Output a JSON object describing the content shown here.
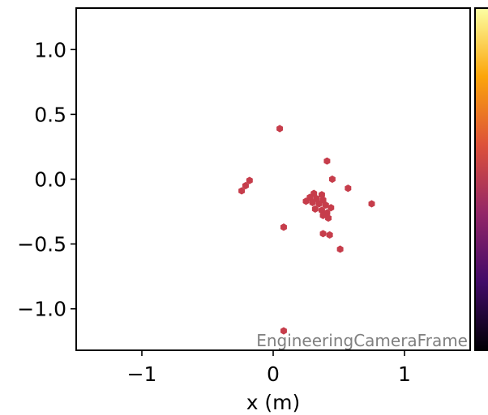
{
  "chart_data": {
    "type": "scatter",
    "title": "",
    "xlabel": "x  (m)",
    "ylabel": "",
    "xlim": [
      -1.5,
      1.5
    ],
    "ylim": [
      -1.32,
      1.32
    ],
    "xticks": [
      {
        "value": -1,
        "label": "−1"
      },
      {
        "value": 0,
        "label": "0"
      },
      {
        "value": 1,
        "label": "1"
      }
    ],
    "yticks": [
      {
        "value": 1.0,
        "label": "1.0"
      },
      {
        "value": 0.5,
        "label": "0.5"
      },
      {
        "value": 0.0,
        "label": "0.0"
      },
      {
        "value": -0.5,
        "label": "−0.5"
      },
      {
        "value": -1.0,
        "label": "−1.0"
      }
    ],
    "annotation": "EngineeringCameraFrame",
    "marker": "hexagon",
    "point_color": "#c63d4b",
    "colorbar": {
      "colormap": "inferno",
      "visible": "partial-right-edge"
    },
    "grid": false,
    "points": [
      {
        "x": 0.05,
        "y": 0.39
      },
      {
        "x": 0.41,
        "y": 0.14
      },
      {
        "x": 0.45,
        "y": 0.0
      },
      {
        "x": 0.57,
        "y": -0.07
      },
      {
        "x": 0.75,
        "y": -0.19
      },
      {
        "x": -0.18,
        "y": -0.01
      },
      {
        "x": -0.21,
        "y": -0.05
      },
      {
        "x": -0.24,
        "y": -0.09
      },
      {
        "x": 0.31,
        "y": -0.11
      },
      {
        "x": 0.37,
        "y": -0.12
      },
      {
        "x": 0.28,
        "y": -0.14
      },
      {
        "x": 0.33,
        "y": -0.15
      },
      {
        "x": 0.38,
        "y": -0.16
      },
      {
        "x": 0.25,
        "y": -0.17
      },
      {
        "x": 0.3,
        "y": -0.18
      },
      {
        "x": 0.35,
        "y": -0.19
      },
      {
        "x": 0.4,
        "y": -0.2
      },
      {
        "x": 0.44,
        "y": -0.22
      },
      {
        "x": 0.32,
        "y": -0.23
      },
      {
        "x": 0.37,
        "y": -0.24
      },
      {
        "x": 0.41,
        "y": -0.26
      },
      {
        "x": 0.38,
        "y": -0.28
      },
      {
        "x": 0.42,
        "y": -0.3
      },
      {
        "x": 0.08,
        "y": -0.37
      },
      {
        "x": 0.38,
        "y": -0.42
      },
      {
        "x": 0.43,
        "y": -0.43
      },
      {
        "x": 0.51,
        "y": -0.54
      },
      {
        "x": 0.08,
        "y": -1.17
      }
    ]
  }
}
